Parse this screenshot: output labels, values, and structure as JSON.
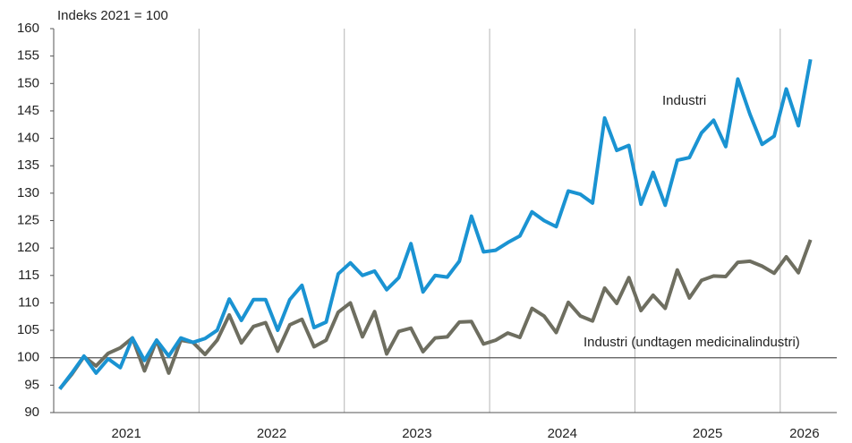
{
  "chart_data": {
    "type": "line",
    "annotation_top": "Indeks 2021 = 100",
    "categories": [
      null,
      null,
      null,
      null,
      null,
      null,
      "2021",
      null,
      null,
      null,
      null,
      null,
      null,
      null,
      null,
      null,
      null,
      null,
      "2022",
      null,
      null,
      null,
      null,
      null,
      null,
      null,
      null,
      null,
      null,
      null,
      "2023",
      null,
      null,
      null,
      null,
      null,
      null,
      null,
      null,
      null,
      null,
      null,
      "2024",
      null,
      null,
      null,
      null,
      null,
      null,
      null,
      null,
      null,
      null,
      null,
      "2025",
      null,
      null,
      null,
      null,
      null,
      null,
      null,
      "2026"
    ],
    "series": [
      {
        "name": "Industri",
        "color": "#1a93d2",
        "values": [
          94.3,
          97.2,
          100.3,
          97.2,
          99.8,
          98.2,
          103.6,
          99.5,
          103.2,
          100.3,
          103.6,
          102.8,
          103.5,
          105,
          110.7,
          106.8,
          110.6,
          110.6,
          105,
          110.6,
          113.2,
          105.5,
          106.5,
          115.3,
          117.3,
          115,
          115.8,
          112.4,
          114.6,
          120.8,
          112,
          115,
          114.7,
          117.6,
          125.8,
          119.3,
          119.6,
          121,
          122.2,
          126.6,
          125,
          123.9,
          130.4,
          129.8,
          128.2,
          143.7,
          137.8,
          138.7,
          128,
          133.8,
          127.8,
          136,
          136.5,
          141,
          143.3,
          138.5,
          150.8,
          144.4,
          138.9,
          140.4,
          149,
          142.3,
          154.4
        ]
      },
      {
        "name": "Industri (undtagen medicinalindustri)",
        "color": "#6e6e60",
        "values": [
          94.3,
          97,
          100.2,
          98.5,
          100.8,
          101.8,
          103.6,
          97.6,
          103.2,
          97.2,
          103.2,
          102.8,
          100.6,
          103.2,
          107.8,
          102.7,
          105.7,
          106.4,
          101.2,
          106,
          107,
          102,
          103.2,
          108.3,
          110,
          103.8,
          108.4,
          100.7,
          104.8,
          105.4,
          101.1,
          103.6,
          103.8,
          106.5,
          106.6,
          102.5,
          103.2,
          104.5,
          103.7,
          109,
          107.6,
          104.6,
          110.1,
          107.6,
          106.7,
          112.7,
          109.9,
          114.6,
          108.6,
          111.4,
          109,
          116,
          110.9,
          114.1,
          114.9,
          114.8,
          117.4,
          117.6,
          116.7,
          115.4,
          118.4,
          115.5,
          121.5
        ]
      }
    ],
    "reference_y": 100,
    "ylim": [
      90,
      160
    ],
    "yticks": [
      90,
      95,
      100,
      105,
      110,
      115,
      120,
      125,
      130,
      135,
      140,
      145,
      150,
      155,
      160
    ],
    "grid": false
  }
}
